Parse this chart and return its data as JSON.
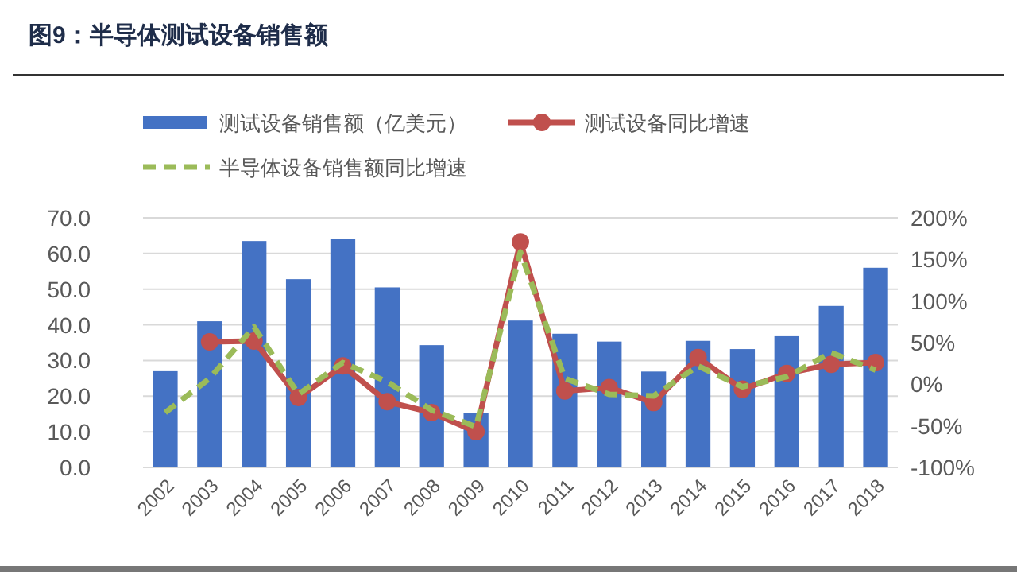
{
  "chart_data": {
    "type": "bar",
    "title": "图9：半导体测试设备销售额",
    "categories": [
      "2002",
      "2003",
      "2004",
      "2005",
      "2006",
      "2007",
      "2008",
      "2009",
      "2010",
      "2011",
      "2012",
      "2013",
      "2014",
      "2015",
      "2016",
      "2017",
      "2018"
    ],
    "series": [
      {
        "name": "测试设备销售额（亿美元）",
        "color": "#4472c4",
        "values": [
          27.0,
          41.0,
          63.5,
          52.8,
          64.2,
          50.5,
          34.3,
          15.3,
          41.2,
          37.5,
          35.3,
          26.9,
          35.5,
          33.2,
          36.8,
          45.3,
          56.0
        ]
      },
      {
        "name": "测试设备同比增速",
        "type": "line",
        "axis": "y2",
        "color": "#c0504d",
        "marker": "circle",
        "line_style": "solid",
        "values": [
          null,
          51,
          52,
          -16,
          22,
          -21,
          -34,
          -57,
          171,
          -8,
          -4,
          -22,
          32,
          -6,
          13,
          24,
          26
        ]
      },
      {
        "name": "半导体设备销售额同比增速",
        "type": "line",
        "axis": "y2",
        "color": "#9bbb59",
        "marker": "none",
        "line_style": "dashed",
        "values": [
          -34,
          7,
          69,
          -12,
          26,
          3,
          -31,
          -51,
          159,
          7,
          -12,
          -14,
          22,
          -3,
          9,
          38,
          17
        ]
      }
    ],
    "ylim": [
      0,
      70
    ],
    "yticks": [
      {
        "value": 0,
        "label": "0.0"
      },
      {
        "value": 10,
        "label": "10.0"
      },
      {
        "value": 20,
        "label": "20.0"
      },
      {
        "value": 30,
        "label": "30.0"
      },
      {
        "value": 40,
        "label": "40.0"
      },
      {
        "value": 50,
        "label": "50.0"
      },
      {
        "value": 60,
        "label": "60.0"
      },
      {
        "value": 70,
        "label": "70.0"
      }
    ],
    "y2lim": [
      -100,
      200
    ],
    "y2ticks": [
      {
        "value": -100,
        "label": "-100%"
      },
      {
        "value": -50,
        "label": "-50%"
      },
      {
        "value": 0,
        "label": "0%"
      },
      {
        "value": 50,
        "label": "50%"
      },
      {
        "value": 100,
        "label": "100%"
      },
      {
        "value": 150,
        "label": "150%"
      },
      {
        "value": 200,
        "label": "200%"
      }
    ],
    "grid": "y",
    "legend": "top"
  }
}
